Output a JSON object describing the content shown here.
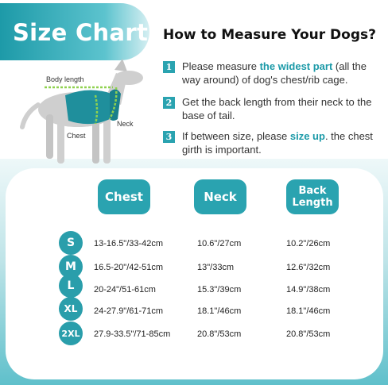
{
  "title": "Size Chart",
  "heading": "How to Measure Your Dogs?",
  "steps": [
    {
      "num": "1",
      "pre": "Please measure ",
      "highlight": "the widest part",
      "post": " (all the way around) of dog's chest/rib cage."
    },
    {
      "num": "2",
      "pre": "Get the back length from their neck to the base of tail.",
      "highlight": "",
      "post": ""
    },
    {
      "num": "3",
      "pre": "If between size, please ",
      "highlight": "size up",
      "post": ". the chest girth is  important."
    }
  ],
  "dog_labels": {
    "body_length": "Body length",
    "neck": "Neck",
    "chest": "Chest"
  },
  "columns": [
    "Chest",
    "Neck",
    "Back Length"
  ],
  "rows": [
    {
      "size": "S",
      "chest": "13-16.5\"/33-42cm",
      "neck": "10.6\"/27cm",
      "back": "10.2\"/26cm"
    },
    {
      "size": "M",
      "chest": "16.5-20\"/42-51cm",
      "neck": "13\"/33cm",
      "back": "12.6\"/32cm"
    },
    {
      "size": "L",
      "chest": "20-24\"/51-61cm",
      "neck": "15.3\"/39cm",
      "back": "14.9\"/38cm"
    },
    {
      "size": "XL",
      "chest": "24-27.9\"/61-71cm",
      "neck": "18.1\"/46cm",
      "back": "18.1\"/46cm"
    },
    {
      "size": "2XL",
      "chest": "27.9-33.5\"/71-85cm",
      "neck": "20.8\"/53cm",
      "back": "20.8\"/53cm"
    }
  ],
  "colors": {
    "accent": "#2aa3b0",
    "highlight": "#1c9aa8"
  }
}
